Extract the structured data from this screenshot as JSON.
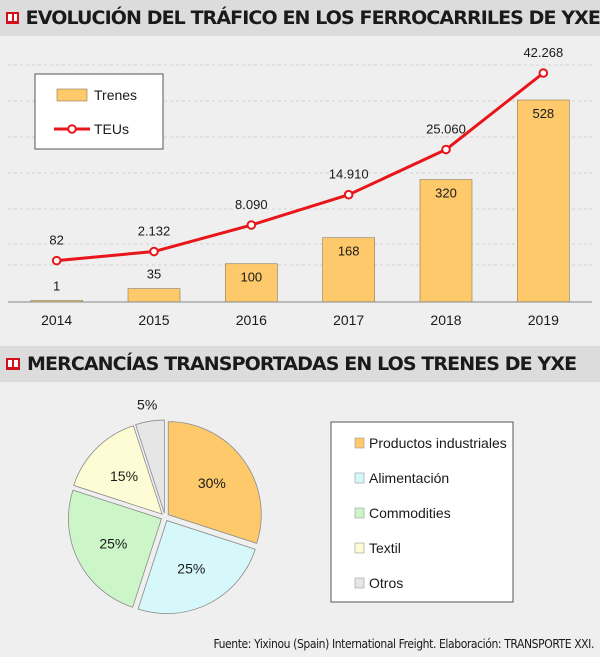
{
  "chart_data": [
    {
      "type": "bar+line",
      "title": "EVOLUCIÓN DEL TRÁFICO EN LOS FERROCARRILES DE YXE",
      "categories": [
        "2014",
        "2015",
        "2016",
        "2017",
        "2018",
        "2019"
      ],
      "series": [
        {
          "name": "Trenes",
          "kind": "bar",
          "values": [
            1,
            35,
            100,
            168,
            320,
            528
          ],
          "labels": [
            "1",
            "35",
            "100",
            "168",
            "320",
            "528"
          ],
          "color": "#fdc96a"
        },
        {
          "name": "TEUs",
          "kind": "line",
          "values": [
            82,
            2132,
            8090,
            14910,
            25060,
            42268
          ],
          "labels": [
            "82",
            "2.132",
            "8.090",
            "14.910",
            "25.060",
            "42.268"
          ],
          "color": "#e8151b"
        }
      ],
      "legend": [
        "Trenes",
        "TEUs"
      ],
      "legend_position": "top-left",
      "grid": true
    },
    {
      "type": "pie",
      "title": "MERCANCÍAS TRANSPORTADAS EN LOS TRENES DE YXE",
      "categories": [
        "Productos industriales",
        "Alimentación",
        "Commodities",
        "Textil",
        "Otros"
      ],
      "values": [
        30,
        25,
        25,
        15,
        5
      ],
      "labels": [
        "30%",
        "25%",
        "25%",
        "15%",
        "5%"
      ],
      "colors": [
        "#fdc96a",
        "#d6f8fb",
        "#ccf5c8",
        "#fdfcd4",
        "#e6e6e6"
      ],
      "legend_position": "right"
    }
  ],
  "source": "Fuente: Yixinou (Spain) International Freight.  Elaboración: TRANSPORTE XXI."
}
